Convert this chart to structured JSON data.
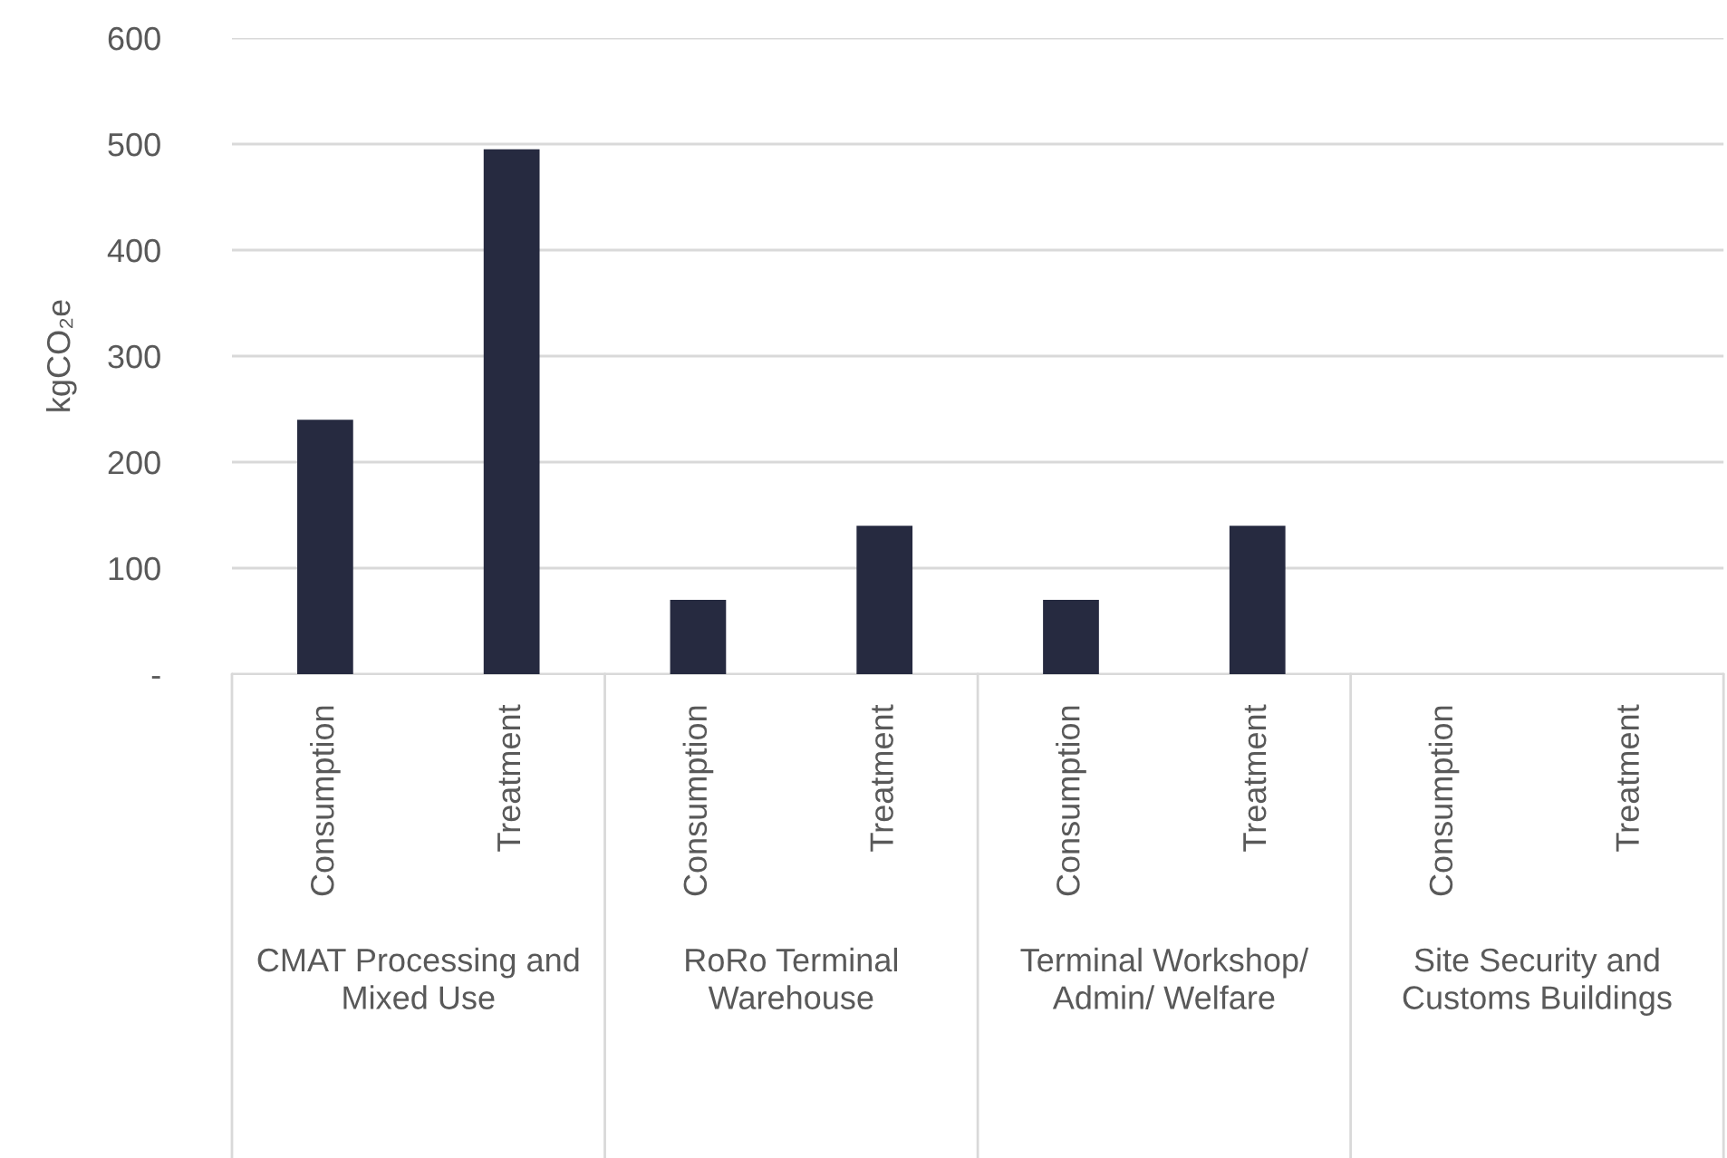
{
  "chart_data": {
    "type": "bar",
    "ylabel": "kgCO₂e",
    "categories": [
      "Consumption",
      "Treatment",
      "Consumption",
      "Treatment",
      "Consumption",
      "Treatment",
      "Consumption",
      "Treatment"
    ],
    "values": [
      240,
      495,
      70,
      140,
      70,
      140,
      0,
      0
    ],
    "color": "#262a40",
    "ylim": [
      0,
      600
    ],
    "yticks": [
      {
        "value": 0,
        "label": "-"
      },
      100,
      200,
      300,
      400,
      500,
      600
    ],
    "grid": "y",
    "legend": false,
    "annotations": [
      "CMAT Processing and Mixed Use",
      "RoRo Terminal Warehouse",
      "Terminal Workshop/ Admin/ Welfare",
      "Site Security and Customs Buildings"
    ]
  }
}
